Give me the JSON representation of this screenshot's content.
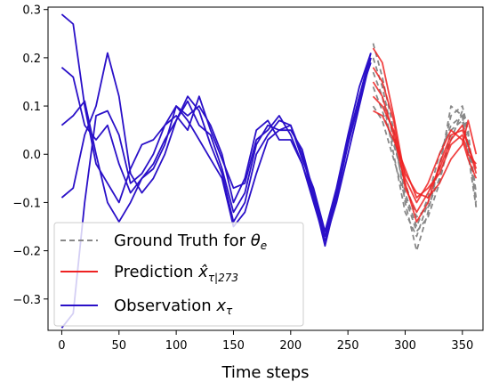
{
  "chart_data": {
    "type": "line",
    "title": "",
    "xlabel": "Time steps",
    "ylabel": "",
    "xlim": [
      -12,
      368
    ],
    "ylim": [
      -0.365,
      0.305
    ],
    "xticks": [
      0,
      50,
      100,
      150,
      200,
      250,
      300,
      350
    ],
    "yticks": [
      -0.3,
      -0.2,
      -0.1,
      0.0,
      0.1,
      0.2,
      0.3
    ],
    "xtick_labels": [
      "0",
      "50",
      "100",
      "150",
      "200",
      "250",
      "300",
      "350"
    ],
    "ytick_labels": [
      "−0.3",
      "−0.2",
      "−0.1",
      "0.0",
      "0.1",
      "0.2",
      "0.3"
    ],
    "grid": false,
    "legend_position": "lower-left",
    "legend": [
      {
        "label": "Ground Truth for θₑ",
        "color": "#888888",
        "style": "dashed"
      },
      {
        "label": "Prediction x̂τ|273",
        "color": "#ee2222",
        "style": "solid"
      },
      {
        "label": "Observation xτ",
        "color": "#2a10c8",
        "style": "solid"
      }
    ],
    "observation_series": [
      {
        "x": [
          0,
          10,
          20,
          30,
          40,
          50,
          60,
          70,
          80,
          90,
          100,
          110,
          120,
          130,
          140,
          150,
          160,
          170,
          180,
          190,
          200,
          210,
          220,
          230,
          240,
          250,
          260,
          270
        ],
        "values": [
          0.29,
          0.27,
          0.1,
          -0.02,
          -0.06,
          -0.1,
          -0.03,
          0.02,
          0.03,
          0.06,
          0.08,
          0.05,
          0.12,
          0.05,
          -0.01,
          -0.07,
          -0.06,
          0.03,
          0.05,
          0.08,
          0.04,
          -0.02,
          -0.1,
          -0.18,
          -0.1,
          0.0,
          0.1,
          0.2
        ]
      },
      {
        "x": [
          0,
          10,
          20,
          30,
          40,
          50,
          60,
          70,
          80,
          90,
          100,
          110,
          120,
          130,
          140,
          150,
          160,
          170,
          180,
          190,
          200,
          210,
          220,
          230,
          240,
          250,
          260,
          270
        ],
        "values": [
          0.18,
          0.16,
          0.06,
          0.03,
          0.06,
          -0.02,
          -0.08,
          -0.05,
          -0.03,
          0.02,
          0.1,
          0.08,
          0.1,
          0.06,
          0.0,
          -0.1,
          -0.05,
          0.05,
          0.07,
          0.03,
          0.03,
          -0.02,
          -0.09,
          -0.17,
          -0.08,
          0.02,
          0.12,
          0.21
        ]
      },
      {
        "x": [
          0,
          10,
          20,
          30,
          40,
          50,
          60,
          70,
          80,
          90,
          100,
          110,
          120,
          130,
          140,
          150,
          160,
          170,
          180,
          190,
          200,
          210,
          220,
          230,
          240,
          250,
          260,
          270
        ],
        "values": [
          0.06,
          0.08,
          0.11,
          0.0,
          -0.1,
          -0.14,
          -0.1,
          -0.05,
          -0.02,
          0.03,
          0.07,
          0.11,
          0.06,
          0.04,
          -0.03,
          -0.12,
          -0.08,
          0.02,
          0.06,
          0.05,
          0.06,
          0.0,
          -0.09,
          -0.19,
          -0.09,
          0.03,
          0.12,
          0.19
        ]
      },
      {
        "x": [
          0,
          10,
          20,
          30,
          40,
          50,
          60,
          70,
          80,
          90,
          100,
          110,
          120,
          130,
          140,
          150,
          160,
          170,
          180,
          190,
          200,
          210,
          220,
          230,
          240,
          250,
          260,
          270
        ],
        "values": [
          -0.09,
          -0.07,
          0.04,
          0.1,
          0.21,
          0.12,
          -0.04,
          -0.08,
          -0.05,
          0.0,
          0.07,
          0.12,
          0.09,
          0.02,
          -0.04,
          -0.14,
          -0.1,
          0.0,
          0.04,
          0.07,
          0.06,
          -0.01,
          -0.07,
          -0.16,
          -0.07,
          0.04,
          0.14,
          0.21
        ]
      },
      {
        "x": [
          0,
          10,
          20,
          30,
          40,
          50,
          60,
          70,
          80,
          90,
          100,
          110,
          120,
          130,
          140,
          150,
          160,
          170,
          180,
          190,
          200,
          210,
          220,
          230,
          240,
          250,
          260,
          270
        ],
        "values": [
          -0.36,
          -0.33,
          -0.1,
          0.08,
          0.09,
          0.04,
          -0.06,
          -0.04,
          0.0,
          0.06,
          0.1,
          0.07,
          0.03,
          -0.01,
          -0.05,
          -0.15,
          -0.12,
          -0.04,
          0.03,
          0.05,
          0.05,
          0.01,
          -0.08,
          -0.17,
          -0.09,
          0.02,
          0.11,
          0.2
        ]
      }
    ],
    "prediction_series": [
      {
        "x": [
          272,
          280,
          290,
          300,
          310,
          320,
          330,
          340,
          350,
          355,
          362
        ],
        "values": [
          0.22,
          0.19,
          0.08,
          -0.05,
          -0.1,
          -0.06,
          0.0,
          0.05,
          0.03,
          -0.01,
          -0.05
        ]
      },
      {
        "x": [
          272,
          280,
          290,
          300,
          310,
          320,
          330,
          340,
          350,
          355,
          362
        ],
        "values": [
          0.18,
          0.15,
          0.07,
          -0.07,
          -0.12,
          -0.08,
          -0.03,
          0.03,
          0.06,
          0.02,
          -0.03
        ]
      },
      {
        "x": [
          272,
          280,
          290,
          300,
          310,
          320,
          330,
          340,
          350,
          355,
          362
        ],
        "values": [
          0.15,
          0.12,
          0.04,
          -0.06,
          -0.14,
          -0.1,
          -0.02,
          0.04,
          0.05,
          0.02,
          -0.04
        ]
      },
      {
        "x": [
          272,
          280,
          290,
          300,
          310,
          320,
          330,
          340,
          350,
          355,
          362
        ],
        "values": [
          0.12,
          0.1,
          0.05,
          -0.04,
          -0.08,
          -0.09,
          -0.06,
          -0.01,
          0.02,
          0.07,
          0.0
        ]
      },
      {
        "x": [
          272,
          280,
          290,
          300,
          310,
          320,
          330,
          340,
          350,
          355,
          362
        ],
        "values": [
          0.09,
          0.08,
          0.03,
          -0.03,
          -0.09,
          -0.07,
          -0.04,
          0.02,
          0.04,
          0.0,
          -0.02
        ]
      }
    ],
    "ground_truth_series": [
      {
        "x": [
          272,
          280,
          290,
          300,
          310,
          320,
          330,
          340,
          350,
          355,
          362
        ],
        "values": [
          0.23,
          0.16,
          0.05,
          -0.1,
          -0.2,
          -0.12,
          -0.02,
          0.08,
          0.1,
          0.05,
          -0.11
        ]
      },
      {
        "x": [
          272,
          280,
          290,
          300,
          310,
          320,
          330,
          340,
          350,
          355,
          362
        ],
        "values": [
          0.2,
          0.14,
          0.03,
          -0.08,
          -0.15,
          -0.09,
          0.0,
          0.06,
          0.08,
          0.02,
          -0.1
        ]
      },
      {
        "x": [
          272,
          280,
          290,
          300,
          310,
          320,
          330,
          340,
          350,
          355,
          362
        ],
        "values": [
          0.17,
          0.12,
          0.0,
          -0.12,
          -0.17,
          -0.1,
          -0.03,
          0.1,
          0.08,
          0.0,
          -0.11
        ]
      },
      {
        "x": [
          272,
          280,
          290,
          300,
          310,
          320,
          330,
          340,
          350,
          355,
          362
        ],
        "values": [
          0.14,
          0.09,
          0.02,
          -0.06,
          -0.13,
          -0.11,
          -0.05,
          0.03,
          0.09,
          0.04,
          -0.08
        ]
      },
      {
        "x": [
          272,
          280,
          290,
          300,
          310,
          320,
          330,
          340,
          350,
          355,
          362
        ],
        "values": [
          0.1,
          0.07,
          -0.01,
          -0.09,
          -0.16,
          -0.13,
          -0.06,
          0.05,
          0.07,
          0.01,
          -0.09
        ]
      }
    ],
    "colors": {
      "observation": "#2a10c8",
      "prediction": "#ee2222",
      "ground_truth": "#888888"
    }
  }
}
